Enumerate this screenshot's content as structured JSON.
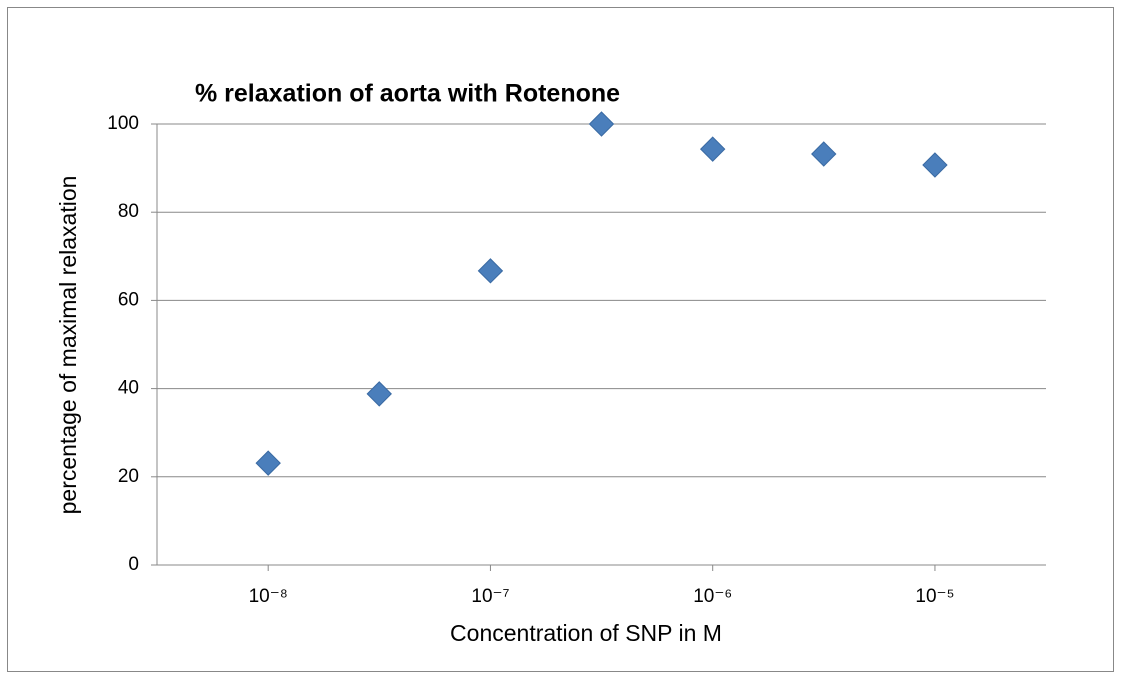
{
  "chart_data": {
    "type": "scatter",
    "title": "% relaxation of aorta with Rotenone",
    "x_label": "Concentration of SNP in M",
    "y_label": "percentage of maximal relaxation",
    "x": [
      1e-08,
      3.16e-08,
      1e-07,
      3.16e-07,
      1e-06,
      3.16e-06,
      1e-05
    ],
    "values": [
      23.1,
      38.8,
      66.7,
      100,
      94.3,
      93.2,
      90.7
    ],
    "color": "#4a7ebb",
    "xscale": "log",
    "xlim": [
      3.16e-09,
      3.16e-05
    ],
    "xticks": [
      {
        "value": 1e-08,
        "label": "10⁻⁸"
      },
      {
        "value": 1e-07,
        "label": "10⁻⁷"
      },
      {
        "value": 1e-06,
        "label": "10⁻⁶"
      },
      {
        "value": 1e-05,
        "label": "10⁻⁵"
      }
    ],
    "ylim": [
      0,
      100
    ],
    "yticks": [
      0,
      20,
      40,
      60,
      80,
      100
    ],
    "grid": true
  }
}
